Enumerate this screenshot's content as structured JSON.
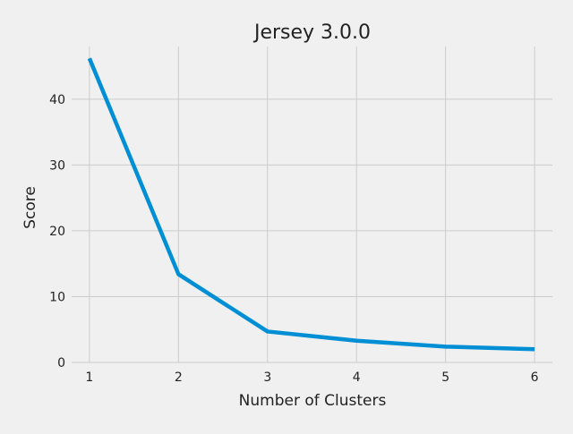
{
  "chart_data": {
    "type": "line",
    "title": "Jersey 3.0.0",
    "xlabel": "Number of Clusters",
    "ylabel": "Score",
    "x": [
      1,
      2,
      3,
      4,
      5,
      6
    ],
    "series": [
      {
        "name": "",
        "values": [
          46.2,
          13.4,
          4.7,
          3.3,
          2.4,
          2.0
        ],
        "color": "#008fd5"
      }
    ],
    "xlim": [
      0.8,
      6.2
    ],
    "ylim": [
      0,
      48
    ],
    "xticks": [
      1,
      2,
      3,
      4,
      5,
      6
    ],
    "yticks": [
      0,
      10,
      20,
      30,
      40
    ],
    "grid": true,
    "legend": "none",
    "background": "#f0f0f0",
    "grid_color": "#cbcbcb"
  }
}
